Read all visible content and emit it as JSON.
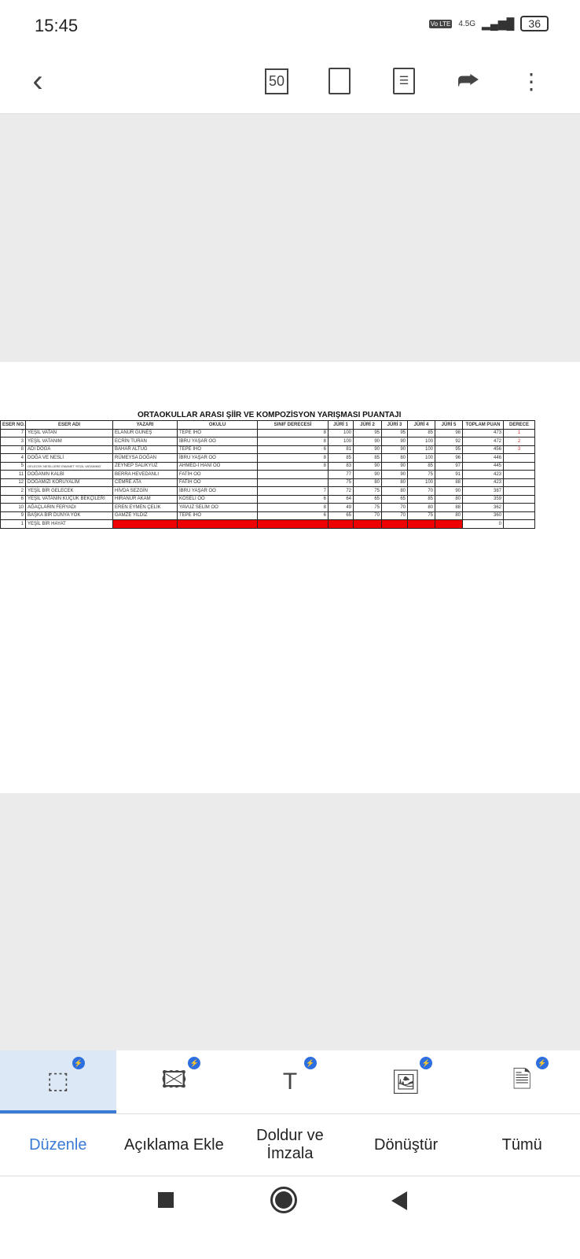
{
  "status": {
    "time": "15:45",
    "network": "4.5G",
    "volte": "Vo LTE",
    "battery": "36"
  },
  "toolbar": {
    "page_count": "50"
  },
  "document": {
    "title": "ORTAOKULLAR ARASI ŞİİR VE KOMPOZİSYON YARIŞMASI PUANTAJI",
    "headers": [
      "ESER NO.",
      "ESER ADI",
      "YAZARI",
      "OKULU",
      "SINIF DERECESİ",
      "JÜRİ 1",
      "JÜRİ 2",
      "JÜRİ 3",
      "JÜRİ 4",
      "JÜRİ 5",
      "TOPLAM PUAN",
      "DERECE"
    ],
    "rows": [
      [
        "7",
        "YEŞİL VATAN",
        "ELANUR GÜNEŞ",
        "TEPE İHO",
        "8",
        "100",
        "95",
        "95",
        "85",
        "98",
        "473",
        "1"
      ],
      [
        "3",
        "YEŞİL VATANIM",
        "ECRİN TURAN",
        "İBRU YAŞAR OO",
        "8",
        "100",
        "90",
        "90",
        "100",
        "92",
        "472",
        "2"
      ],
      [
        "8",
        "ADI DOĞA",
        "BAHAR ALTUĞ",
        "TEPE İHO",
        "6",
        "81",
        "90",
        "90",
        "100",
        "95",
        "456",
        "3"
      ],
      [
        "4",
        "DOĞA VE NESLİ",
        "RÜMEYSA DOĞAN",
        "İBRU YAŞAR OO",
        "8",
        "85",
        "85",
        "80",
        "100",
        "96",
        "446",
        ""
      ],
      [
        "5",
        "GELECEK NESİLLERE EMANET YEŞİL VATANIMIZ",
        "ZEYNEP SALIKYÜZ",
        "AHMED-İ HANİ OO",
        "8",
        "83",
        "90",
        "90",
        "85",
        "97",
        "445",
        ""
      ],
      [
        "11",
        "DOĞANIN KALBİ",
        "BERRA HEVEDANLI",
        "FATİH OO",
        "",
        "77",
        "90",
        "90",
        "75",
        "91",
        "423",
        ""
      ],
      [
        "12",
        "DOĞAMIZI KORUYALIM",
        "CEMRE ATA",
        "FATİH OO",
        "",
        "75",
        "80",
        "80",
        "100",
        "88",
        "423",
        ""
      ],
      [
        "2",
        "YEŞİL BİR GELECEK",
        "HİVDA SEZGİN",
        "İBRU YAŞAR OO",
        "7",
        "72",
        "75",
        "80",
        "70",
        "90",
        "387",
        ""
      ],
      [
        "6",
        "YEŞİL VATANIN KÜÇÜK BEKÇİLERİ",
        "HİRANUR AKAM",
        "KÖSELİ OO",
        "6",
        "64",
        "65",
        "65",
        "85",
        "80",
        "359",
        ""
      ],
      [
        "10",
        "AĞAÇLARIN FERYADI",
        "EREN EYMEN ÇELİK",
        "YAVUZ SELİM OO",
        "8",
        "49",
        "75",
        "70",
        "80",
        "88",
        "362",
        ""
      ],
      [
        "9",
        "BAŞKA BİR DÜNYA YOK",
        "GAMZE YILDIZ",
        "TEPE İHO",
        "6",
        "65",
        "70",
        "70",
        "75",
        "80",
        "360",
        ""
      ],
      [
        "1",
        "YEŞİL BİR HAYAT",
        "",
        "",
        "",
        "",
        "",
        "",
        "",
        "",
        "0",
        ""
      ]
    ]
  },
  "bottom": {
    "tabs": [
      {
        "label": "Düzenle",
        "icon": "edit-text-icon"
      },
      {
        "label": "Açıklama Ekle",
        "icon": "annotate-image-icon"
      },
      {
        "label": "Doldur ve İmzala",
        "icon": "add-text-icon"
      },
      {
        "label": "Dönüştür",
        "icon": "convert-image-icon"
      },
      {
        "label": "Tümü",
        "icon": "pdf-add-icon"
      }
    ],
    "badge": "⚡"
  },
  "colors": {
    "accent": "#3a7bd5",
    "highlight_row": "#e00000",
    "badge": "#2d6fe0"
  }
}
